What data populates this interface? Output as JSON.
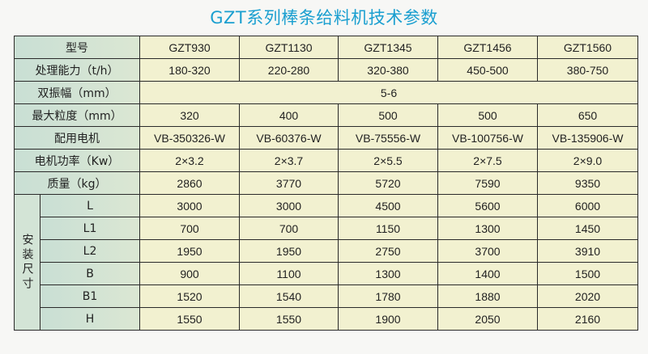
{
  "title": "GZT系列棒条给料机技术参数",
  "header": {
    "label": "型号",
    "models": [
      "GZT930",
      "GZT1130",
      "GZT1345",
      "GZT1456",
      "GZT1560"
    ]
  },
  "rows": [
    {
      "label": "处理能力（t/h）",
      "values": [
        "180-320",
        "220-280",
        "320-380",
        "450-500",
        "380-750"
      ]
    },
    {
      "label": "双振幅（mm）",
      "merged_value": "5-6"
    },
    {
      "label": "最大粒度（mm）",
      "values": [
        "320",
        "400",
        "500",
        "500",
        "650"
      ]
    },
    {
      "label": "配用电机",
      "values": [
        "VB-350326-W",
        "VB-60376-W",
        "VB-75556-W",
        "VB-100756-W",
        "VB-135906-W"
      ]
    },
    {
      "label": "电机功率（Kw）",
      "values": [
        "2×3.2",
        "2×3.7",
        "2×5.5",
        "2×7.5",
        "2×9.0"
      ]
    },
    {
      "label": "质量（kg）",
      "values": [
        "2860",
        "3770",
        "5720",
        "7590",
        "9350"
      ]
    }
  ],
  "install": {
    "group_label": "安装尺寸",
    "rows": [
      {
        "label": "L",
        "values": [
          "3000",
          "3000",
          "4500",
          "5600",
          "6000"
        ]
      },
      {
        "label": "L1",
        "values": [
          "700",
          "700",
          "1150",
          "1300",
          "1450"
        ]
      },
      {
        "label": "L2",
        "values": [
          "1950",
          "1950",
          "2750",
          "3700",
          "3910"
        ]
      },
      {
        "label": "B",
        "values": [
          "900",
          "1100",
          "1300",
          "1400",
          "1500"
        ]
      },
      {
        "label": "B1",
        "values": [
          "1520",
          "1540",
          "1780",
          "1880",
          "2020"
        ]
      },
      {
        "label": "H",
        "values": [
          "1550",
          "1550",
          "1900",
          "2050",
          "2160"
        ]
      }
    ]
  }
}
